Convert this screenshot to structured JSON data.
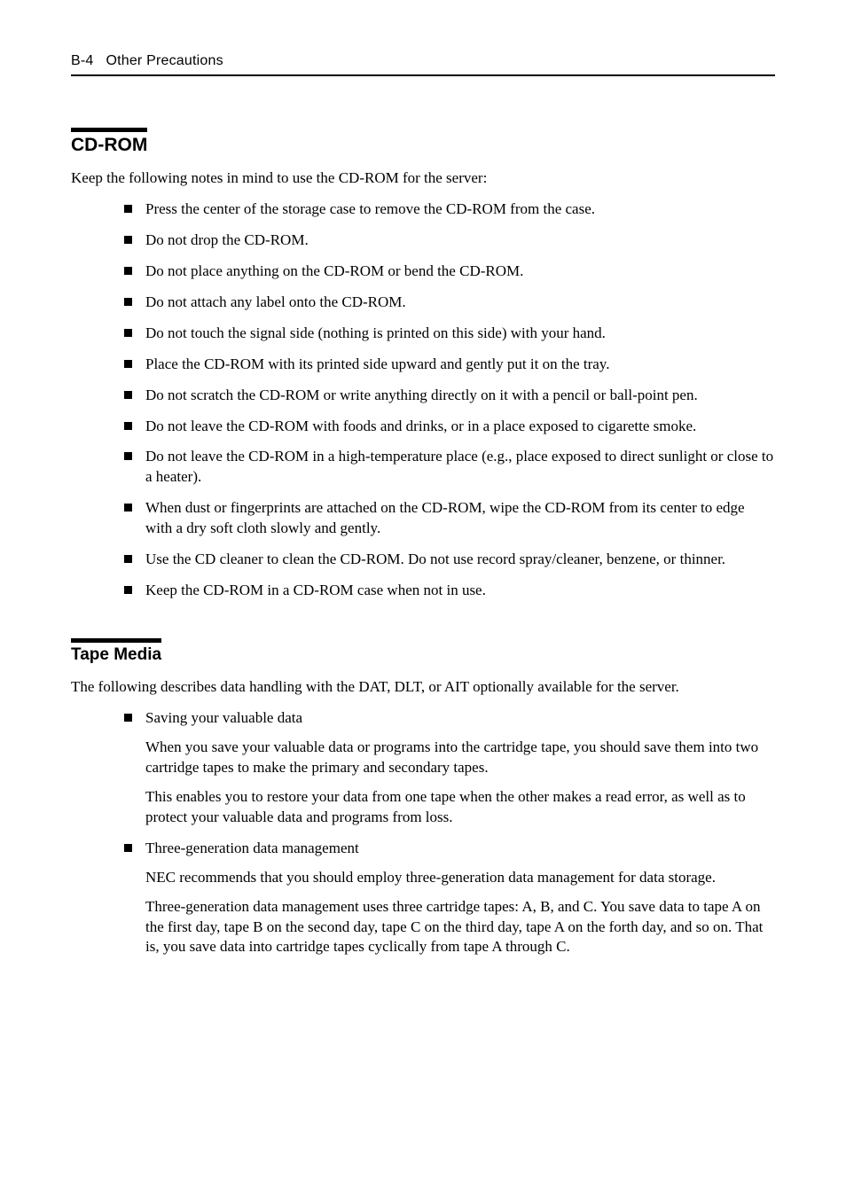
{
  "header": {
    "page_label": "B-4",
    "section": "Other Precautions"
  },
  "sections": [
    {
      "title": "CD-ROM",
      "intro": "Keep the following notes in mind to use the CD-ROM for the server:",
      "bullets": [
        {
          "text": "Press the center of the storage case to remove the CD-ROM from the case."
        },
        {
          "text": "Do not drop the CD-ROM."
        },
        {
          "text": "Do not place anything on the CD-ROM or bend the CD-ROM."
        },
        {
          "text": "Do not attach any label onto the CD-ROM."
        },
        {
          "text": "Do not touch the signal side (nothing is printed on this side) with your hand."
        },
        {
          "text": "Place the CD-ROM with its printed side upward and gently put it on the tray."
        },
        {
          "text": "Do not scratch the CD-ROM or write anything directly on it with a pencil or ball-point pen."
        },
        {
          "text": "Do not leave the CD-ROM with foods and drinks, or in a place exposed to cigarette smoke."
        },
        {
          "text": "Do not leave the CD-ROM in a high-temperature place (e.g., place exposed to direct sunlight or close to a heater)."
        },
        {
          "text": "When dust or fingerprints are attached on the CD-ROM, wipe the CD-ROM from its center to edge with a dry soft cloth slowly and gently."
        },
        {
          "text": "Use the CD cleaner to clean the CD-ROM.    Do not use record spray/cleaner, benzene, or thinner."
        },
        {
          "text": "Keep the CD-ROM in a CD-ROM case when not in use."
        }
      ]
    },
    {
      "title": "Tape Media",
      "intro": "The following describes data handling with the DAT, DLT, or AIT optionally available for the server.",
      "bullets": [
        {
          "text": "Saving your valuable data",
          "paras": [
            "When you save your valuable data or programs into the cartridge tape, you should save them into two cartridge tapes to make the primary and secondary tapes.",
            "This enables you to restore your data from one tape when the other makes a read error, as well as to protect your valuable data and programs from loss."
          ]
        },
        {
          "text": "Three-generation data management",
          "paras": [
            "NEC recommends that you should employ three-generation data management for data storage.",
            "Three-generation data management uses three cartridge tapes: A, B, and C.    You save data to tape A on the first day, tape B on the second day, tape C on the third day, tape A on the forth day, and so on.    That is, you save data into cartridge tapes cyclically from tape A through C."
          ]
        }
      ]
    }
  ]
}
